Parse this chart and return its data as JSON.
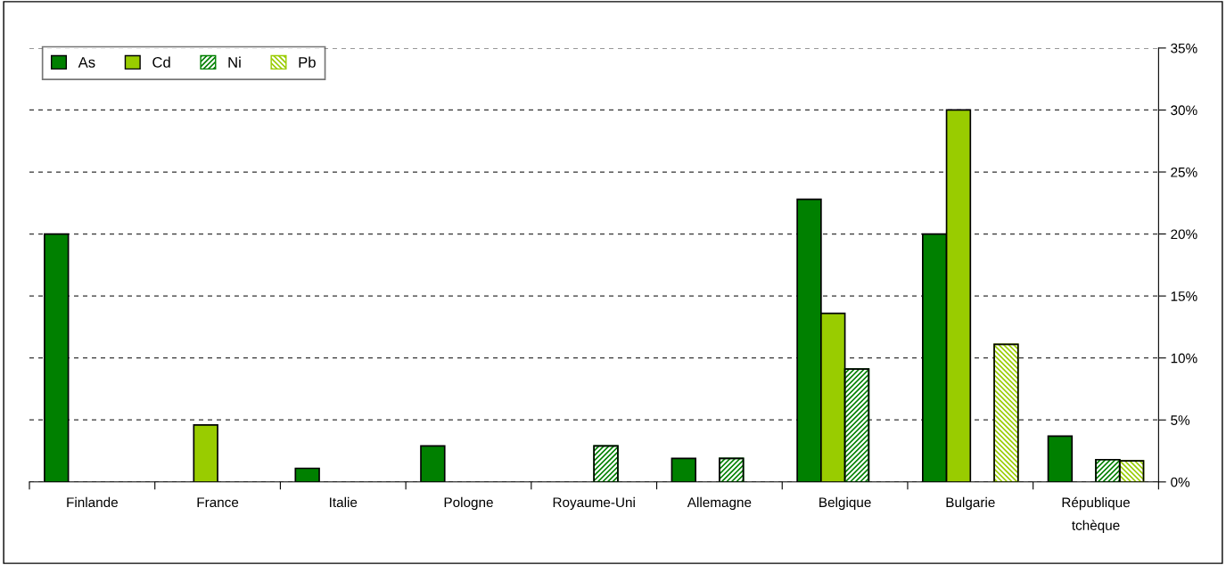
{
  "chart_data": {
    "type": "bar",
    "categories": [
      "Finlande",
      "France",
      "Italie",
      "Pologne",
      "Royaume-Uni",
      "Allemagne",
      "Belgique",
      "Bulgarie",
      "République tchèque"
    ],
    "series": [
      {
        "name": "As",
        "color": "#008000",
        "values": [
          20.0,
          null,
          1.1,
          2.9,
          null,
          1.9,
          22.8,
          20.0,
          3.7
        ]
      },
      {
        "name": "Cd",
        "color": "#99cc00",
        "values": [
          null,
          4.6,
          null,
          null,
          null,
          null,
          13.6,
          30.0,
          null
        ]
      },
      {
        "name": "Ni",
        "color": "#008000",
        "values": [
          null,
          null,
          null,
          null,
          2.9,
          1.9,
          9.1,
          null,
          1.8
        ]
      },
      {
        "name": "Pb",
        "color": "#99cc00",
        "values": [
          null,
          null,
          null,
          null,
          null,
          null,
          null,
          11.1,
          1.7
        ]
      }
    ],
    "ylim": [
      0,
      35
    ],
    "yticks": [
      {
        "value": 0,
        "label": "0%"
      },
      {
        "value": 5,
        "label": "5%"
      },
      {
        "value": 10,
        "label": "10%"
      },
      {
        "value": 15,
        "label": "15%"
      },
      {
        "value": 20,
        "label": "20%"
      },
      {
        "value": 25,
        "label": "25%"
      },
      {
        "value": 30,
        "label": "30%"
      },
      {
        "value": 35,
        "label": "35%"
      }
    ],
    "grid": "y",
    "legend": "top left"
  }
}
